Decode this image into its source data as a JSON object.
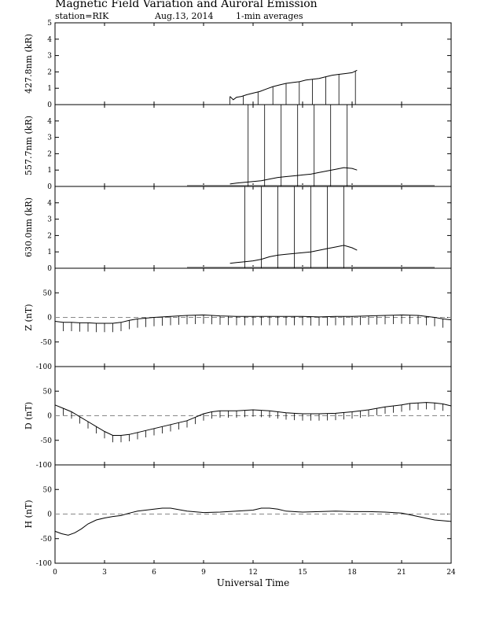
{
  "header": {
    "title": "Magnetic Field Variation and Auroral Emission",
    "station": "station=RIK",
    "date": "Aug.13, 2014",
    "averaging": "1-min averages"
  },
  "chart_data": {
    "type": "line",
    "xlabel": "Universal Time",
    "x_ticks": [
      "0",
      "3",
      "6",
      "9",
      "12",
      "15",
      "18",
      "21",
      "24"
    ],
    "xlim": [
      0,
      24
    ],
    "grid": false,
    "panels": [
      {
        "id": "4278",
        "ylabel": "427.8nm (kR)",
        "ylim": [
          0,
          5
        ],
        "y_ticks": [
          "0",
          "1",
          "2",
          "3",
          "4",
          "5"
        ],
        "zero_line": false,
        "series": {
          "x": [
            10.6,
            10.8,
            11.0,
            11.3,
            11.6,
            12.0,
            12.4,
            12.8,
            13.2,
            13.6,
            14.0,
            14.4,
            14.8,
            15.2,
            15.6,
            16.0,
            16.4,
            16.8,
            17.2,
            17.6,
            18.0,
            18.3
          ],
          "y": [
            0.5,
            0.3,
            0.45,
            0.5,
            0.6,
            0.7,
            0.8,
            0.95,
            1.1,
            1.2,
            1.3,
            1.35,
            1.4,
            1.5,
            1.55,
            1.6,
            1.7,
            1.8,
            1.85,
            1.9,
            1.95,
            2.1
          ]
        },
        "dropouts": [
          10.6,
          11.4,
          12.3,
          13.2,
          14.0,
          14.8,
          15.6,
          16.4,
          17.2,
          18.2
        ]
      },
      {
        "id": "5577",
        "ylabel": "557.7nm (kR)",
        "ylim": [
          0,
          5
        ],
        "y_ticks": [
          "0",
          "1",
          "2",
          "3",
          "4"
        ],
        "zero_line": false,
        "baseline": {
          "from": 8.0,
          "to": 23.0,
          "value": 0.05
        },
        "series": {
          "x": [
            10.6,
            11.0,
            11.5,
            12.0,
            12.5,
            13.0,
            13.5,
            14.0,
            14.5,
            15.0,
            15.5,
            16.0,
            16.5,
            17.0,
            17.5,
            18.0,
            18.3
          ],
          "y": [
            0.15,
            0.2,
            0.25,
            0.3,
            0.35,
            0.45,
            0.55,
            0.6,
            0.65,
            0.7,
            0.75,
            0.85,
            0.95,
            1.05,
            1.15,
            1.1,
            1.0
          ]
        },
        "spikes": [
          11.7,
          12.7,
          13.7,
          14.7,
          15.7,
          16.7,
          17.7
        ]
      },
      {
        "id": "6300",
        "ylabel": "630.0nm (kR)",
        "ylim": [
          0,
          5
        ],
        "y_ticks": [
          "0",
          "1",
          "2",
          "3",
          "4"
        ],
        "zero_line": false,
        "baseline": {
          "from": 8.0,
          "to": 23.0,
          "value": 0.05
        },
        "series": {
          "x": [
            10.6,
            11.0,
            11.5,
            12.0,
            12.5,
            13.0,
            13.5,
            14.0,
            14.5,
            15.0,
            15.5,
            16.0,
            16.5,
            17.0,
            17.5,
            18.0,
            18.3
          ],
          "y": [
            0.3,
            0.35,
            0.4,
            0.45,
            0.55,
            0.7,
            0.8,
            0.85,
            0.9,
            0.95,
            1.0,
            1.1,
            1.2,
            1.3,
            1.4,
            1.25,
            1.1
          ]
        },
        "spikes": [
          11.5,
          12.5,
          13.5,
          14.5,
          15.5,
          16.5,
          17.5
        ]
      },
      {
        "id": "Z",
        "ylabel": "Z (nT)",
        "ylim": [
          -100,
          100
        ],
        "y_ticks": [
          "-100",
          "-50",
          "0",
          "50"
        ],
        "zero_line": true,
        "series": {
          "x": [
            0,
            0.5,
            1,
            1.5,
            2,
            2.5,
            3,
            3.5,
            4,
            4.5,
            5,
            6,
            7,
            8,
            9,
            10,
            11,
            12,
            13,
            14,
            15,
            16,
            17,
            18,
            19,
            20,
            21,
            22,
            23,
            23.5,
            24
          ],
          "y": [
            -8,
            -10,
            -10,
            -11,
            -11,
            -12,
            -12,
            -12,
            -10,
            -6,
            -3,
            0,
            2,
            4,
            5,
            3,
            2,
            2,
            2,
            2,
            2,
            1,
            2,
            2,
            3,
            4,
            5,
            4,
            0,
            -3,
            -5
          ]
        },
        "dropout_every": 0.5,
        "dropout_depth": 18
      },
      {
        "id": "D",
        "ylabel": "D (nT)",
        "ylim": [
          -100,
          100
        ],
        "y_ticks": [
          "-100",
          "-50",
          "0",
          "50"
        ],
        "zero_line": true,
        "series": {
          "x": [
            0,
            0.5,
            1,
            1.5,
            2,
            2.5,
            3,
            3.5,
            4,
            4.5,
            5,
            5.5,
            6,
            6.5,
            7,
            7.5,
            8,
            8.5,
            9,
            9.5,
            10,
            11,
            12,
            13,
            14,
            15,
            16,
            17,
            18,
            19,
            20,
            21,
            21.5,
            22,
            22.5,
            23,
            23.5,
            24
          ],
          "y": [
            22,
            15,
            8,
            -2,
            -12,
            -22,
            -32,
            -40,
            -40,
            -38,
            -34,
            -30,
            -26,
            -22,
            -18,
            -14,
            -10,
            -3,
            4,
            8,
            10,
            10,
            12,
            10,
            6,
            4,
            4,
            5,
            8,
            12,
            18,
            22,
            25,
            26,
            27,
            26,
            24,
            20
          ]
        },
        "dropout_every": 0.5,
        "dropout_depth": 14
      },
      {
        "id": "H",
        "ylabel": "H (nT)",
        "ylim": [
          -100,
          100
        ],
        "y_ticks": [
          "-100",
          "-50",
          "0",
          "50"
        ],
        "zero_line": true,
        "series": {
          "x": [
            0,
            0.4,
            0.8,
            1.2,
            1.6,
            2,
            2.5,
            3,
            3.5,
            4,
            4.5,
            5,
            5.5,
            6,
            6.5,
            7,
            8,
            9,
            10,
            11,
            12,
            12.5,
            13,
            13.5,
            14,
            15,
            16,
            17,
            18,
            19,
            20,
            21,
            22,
            23,
            24
          ],
          "y": [
            -35,
            -40,
            -43,
            -38,
            -30,
            -20,
            -12,
            -8,
            -5,
            -3,
            2,
            6,
            8,
            10,
            12,
            12,
            6,
            3,
            4,
            6,
            8,
            12,
            12,
            10,
            6,
            4,
            5,
            6,
            5,
            5,
            4,
            2,
            -5,
            -12,
            -15
          ]
        }
      }
    ]
  }
}
